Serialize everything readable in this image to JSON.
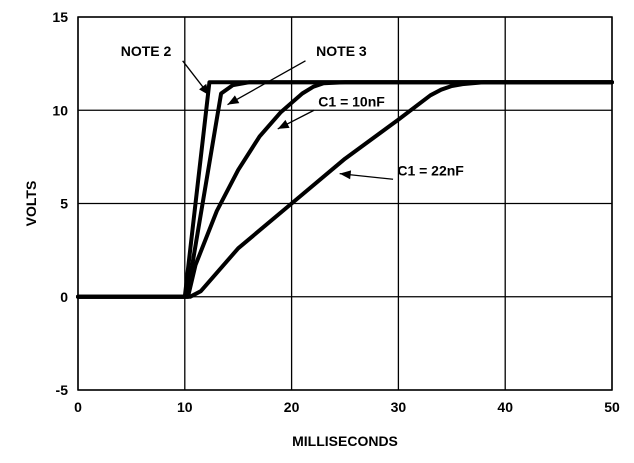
{
  "chart_data": {
    "type": "line",
    "xlabel": "MILLISECONDS",
    "ylabel": "VOLTS",
    "xlim": [
      0,
      50
    ],
    "ylim": [
      -5,
      15
    ],
    "x_ticks": [
      "0",
      "10",
      "20",
      "30",
      "40",
      "50"
    ],
    "y_ticks": [
      "-5",
      "0",
      "5",
      "10",
      "15"
    ],
    "grid": true,
    "series": [
      {
        "id": "note2",
        "x": [
          0,
          10,
          12.3,
          50
        ],
        "y": [
          0,
          0,
          11.5,
          11.5
        ]
      },
      {
        "id": "note3",
        "x": [
          0,
          10.2,
          13.4,
          14.5,
          16,
          50
        ],
        "y": [
          0,
          0,
          10.9,
          11.35,
          11.5,
          11.5
        ]
      },
      {
        "id": "c1-10nf",
        "x": [
          0,
          10.3,
          11,
          13,
          15,
          17,
          19,
          21,
          22,
          23,
          25,
          50
        ],
        "y": [
          0,
          0,
          1.7,
          4.6,
          6.8,
          8.6,
          9.9,
          10.9,
          11.25,
          11.45,
          11.5,
          11.5
        ]
      },
      {
        "id": "c1-22nf",
        "x": [
          0,
          10.5,
          11.5,
          15,
          20,
          25,
          30,
          33,
          34,
          35,
          36,
          38,
          50
        ],
        "y": [
          0,
          0,
          0.3,
          2.6,
          5.0,
          7.4,
          9.5,
          10.8,
          11.1,
          11.3,
          11.4,
          11.5,
          11.5
        ]
      }
    ],
    "annotations": [
      {
        "text": "NOTE 2",
        "label_x": 4,
        "label_y": 12.9,
        "arrow_from": [
          9.8,
          12.65
        ],
        "arrow_to": [
          12.3,
          10.8
        ]
      },
      {
        "text": "NOTE 3",
        "label_x": 22.3,
        "label_y": 12.9,
        "arrow_from": [
          21.3,
          12.65
        ],
        "arrow_to": [
          14.0,
          10.3
        ]
      },
      {
        "text": "C1 = 10nF",
        "label_x": 22.5,
        "label_y": 10.2,
        "arrow_from": [
          22.1,
          10.0
        ],
        "arrow_to": [
          18.7,
          9.0
        ]
      },
      {
        "text": "C1 = 22nF",
        "label_x": 29.9,
        "label_y": 6.5,
        "arrow_from": [
          29.5,
          6.3
        ],
        "arrow_to": [
          24.5,
          6.6
        ]
      }
    ]
  }
}
